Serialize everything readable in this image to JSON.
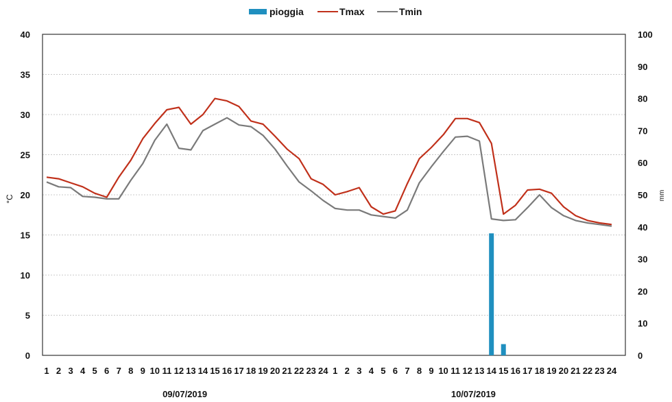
{
  "chart_data": {
    "type": "line",
    "title": "",
    "legend": {
      "placement": "top-center",
      "items": [
        {
          "label": "pioggia",
          "kind": "bar",
          "color": "#1f8fbf"
        },
        {
          "label": "Tmax",
          "kind": "line",
          "color": "#c0301a"
        },
        {
          "label": "Tmin",
          "kind": "line",
          "color": "#7a7a7a"
        }
      ]
    },
    "y_left": {
      "label": "°C",
      "min": 0,
      "max": 40,
      "ticks": [
        "0",
        "5",
        "10",
        "15",
        "20",
        "25",
        "30",
        "35",
        "40"
      ]
    },
    "y_right": {
      "label": "mm",
      "min": 0,
      "max": 100,
      "ticks": [
        "0",
        "10",
        "20",
        "30",
        "40",
        "50",
        "60",
        "70",
        "80",
        "90",
        "100"
      ]
    },
    "grid": true,
    "categories": [
      "1",
      "2",
      "3",
      "4",
      "5",
      "6",
      "7",
      "8",
      "9",
      "10",
      "11",
      "12",
      "13",
      "14",
      "15",
      "16",
      "17",
      "18",
      "19",
      "20",
      "21",
      "22",
      "23",
      "24",
      "1",
      "2",
      "3",
      "4",
      "5",
      "6",
      "7",
      "8",
      "9",
      "10",
      "11",
      "12",
      "13",
      "14",
      "15",
      "16",
      "17",
      "18",
      "19",
      "20",
      "21",
      "22",
      "23",
      "24"
    ],
    "dates": [
      {
        "label": "09/07/2019",
        "start_index": 0,
        "end_index": 23
      },
      {
        "label": "10/07/2019",
        "start_index": 24,
        "end_index": 47
      }
    ],
    "series": [
      {
        "name": "Tmax",
        "axis": "left",
        "color": "#c0301a",
        "values": [
          22.2,
          22.0,
          21.5,
          21.0,
          20.2,
          19.7,
          22.2,
          24.3,
          27.0,
          28.9,
          30.6,
          30.9,
          28.8,
          30.0,
          32.0,
          31.7,
          31.0,
          29.2,
          28.8,
          27.3,
          25.7,
          24.5,
          22.0,
          21.3,
          20.0,
          20.4,
          20.9,
          18.5,
          17.6,
          18.0,
          21.4,
          24.5,
          25.9,
          27.5,
          29.5,
          29.5,
          29.0,
          26.4,
          17.6,
          18.7,
          20.6,
          20.7,
          20.2,
          18.5,
          17.4,
          16.8,
          16.5,
          16.3
        ]
      },
      {
        "name": "Tmin",
        "axis": "left",
        "color": "#7a7a7a",
        "values": [
          21.6,
          21.0,
          20.9,
          19.8,
          19.7,
          19.5,
          19.5,
          21.8,
          23.9,
          26.8,
          28.8,
          25.8,
          25.6,
          28.0,
          28.8,
          29.6,
          28.7,
          28.5,
          27.4,
          25.7,
          23.6,
          21.6,
          20.5,
          19.3,
          18.3,
          18.1,
          18.1,
          17.5,
          17.3,
          17.1,
          18.1,
          21.5,
          23.5,
          25.4,
          27.2,
          27.3,
          26.7,
          17.0,
          16.8,
          16.9,
          18.4,
          20.0,
          18.4,
          17.4,
          16.8,
          16.5,
          16.3,
          16.1
        ]
      },
      {
        "name": "pioggia",
        "axis": "right",
        "color": "#1f8fbf",
        "values": [
          0,
          0,
          0,
          0,
          0,
          0,
          0,
          0,
          0,
          0,
          0,
          0,
          0,
          0,
          0,
          0,
          0,
          0,
          0,
          0,
          0,
          0,
          0,
          0,
          0,
          0,
          0,
          0,
          0,
          0,
          0,
          0,
          0,
          0,
          0,
          0,
          0,
          38,
          3.5,
          0,
          0,
          0,
          0,
          0,
          0,
          0,
          0,
          0
        ]
      }
    ]
  }
}
